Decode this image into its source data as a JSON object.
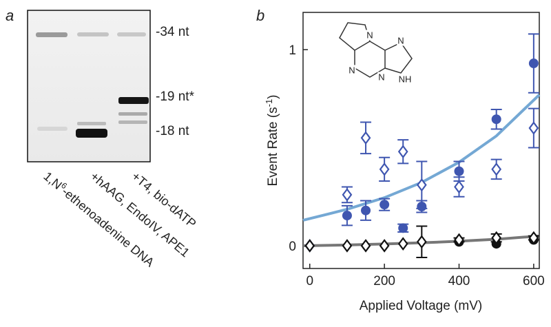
{
  "panel_a": {
    "label": "a",
    "band_labels": [
      "-34 nt",
      "-19 nt*",
      "-18 nt"
    ],
    "lane_labels": [
      [
        "1,N",
        "6",
        "-ethenoadenine DNA"
      ],
      "+hAAG, EndoIV, APE1",
      "+T4, bio-dATP"
    ]
  },
  "chart_data": {
    "type": "scatter",
    "panel_label": "b",
    "x_label": "Applied Voltage (mV)",
    "y_label": [
      "Event Rate (s",
      "-1",
      ")"
    ],
    "structure_labels": [
      "N",
      "N",
      "N",
      "N",
      "NH"
    ],
    "xlim": [
      -18,
      615
    ],
    "ylim": [
      -0.116,
      1.19
    ],
    "xticks": [
      0,
      200,
      400,
      600
    ],
    "yticks": [
      0,
      1
    ],
    "series": [
      {
        "marker": "filled-circle",
        "color": "#3f56b0",
        "x": [
          100,
          150,
          200,
          250,
          300,
          400,
          500,
          600
        ],
        "values": [
          0.154,
          0.18,
          0.21,
          0.09,
          0.2,
          0.38,
          0.645,
          0.93
        ],
        "errors": [
          0.05,
          0.05,
          0.03,
          0.02,
          0.03,
          0.05,
          0.05,
          0.15
        ]
      },
      {
        "marker": "open-diamond",
        "color": "#3f56b0",
        "x": [
          0,
          100,
          150,
          200,
          250,
          300,
          400,
          500,
          600
        ],
        "values": [
          0,
          0.26,
          0.55,
          0.39,
          0.48,
          0.31,
          0.3,
          0.39,
          0.6
        ],
        "errors": [
          0,
          0.04,
          0.08,
          0.06,
          0.06,
          0.12,
          0.05,
          0.05,
          0.1
        ]
      },
      {
        "marker": "filled-circle",
        "color": "#111111",
        "x": [
          400,
          500,
          600
        ],
        "values": [
          0.02,
          0.01,
          0.03
        ],
        "errors": [
          0,
          0,
          0
        ]
      },
      {
        "marker": "open-diamond",
        "color": "#111111",
        "x": [
          0,
          100,
          150,
          200,
          250,
          300,
          400,
          500,
          600
        ],
        "values": [
          0,
          0,
          0,
          0,
          0.01,
          0.02,
          0.03,
          0.04,
          0.04
        ],
        "errors": [
          0,
          0,
          0,
          0,
          0,
          0.08,
          0.01,
          0.02,
          0.01
        ]
      }
    ],
    "fits": [
      {
        "color": "#74a8d4",
        "x": [
          -18,
          50,
          100,
          200,
          300,
          400,
          500,
          615
        ],
        "values": [
          0.13,
          0.162,
          0.186,
          0.245,
          0.323,
          0.426,
          0.56,
          0.77
        ]
      },
      {
        "color": "#777777",
        "x": [
          -18,
          100,
          200,
          300,
          400,
          500,
          615
        ],
        "values": [
          0,
          0.004,
          0.009,
          0.015,
          0.023,
          0.033,
          0.05
        ]
      }
    ]
  }
}
